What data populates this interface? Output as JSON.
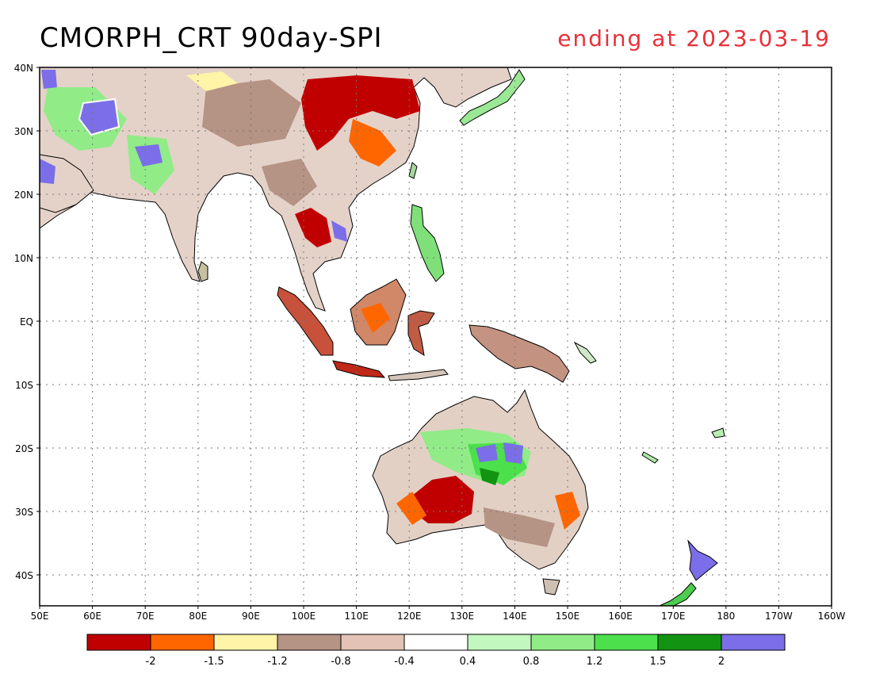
{
  "title": {
    "main": "CMORPH_CRT 90day-SPI",
    "ending": "ending at 2023-03-19",
    "ending_color": "#e8303a"
  },
  "map": {
    "lon_labels": [
      "50E",
      "60E",
      "70E",
      "80E",
      "90E",
      "100E",
      "110E",
      "120E",
      "130E",
      "140E",
      "150E",
      "160E",
      "170E",
      "180",
      "170W",
      "160W"
    ],
    "lat_labels": [
      "40N",
      "30N",
      "20N",
      "10N",
      "EQ",
      "10S",
      "20S",
      "30S",
      "40S"
    ]
  },
  "legend": {
    "colors": [
      "#c00000",
      "#ff6600",
      "#fff4a8",
      "#b59385",
      "#e2c3b5",
      "#ffffff",
      "#c3f7c0",
      "#91ec88",
      "#4ce04c",
      "#129412",
      "#7b6ee8"
    ],
    "labels": [
      "-2",
      "-1.5",
      "-1.2",
      "-0.8",
      "-0.4",
      "0.4",
      "0.8",
      "1.2",
      "1.5",
      "2"
    ]
  }
}
